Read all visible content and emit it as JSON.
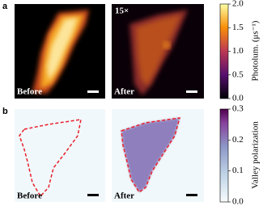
{
  "panels": [
    {
      "label": "a",
      "images": [
        {
          "label": "Before"
        },
        {
          "label": "After",
          "annotation": "15×"
        }
      ],
      "colorbar": {
        "label": "Photolum. (μs⁻¹)",
        "lim": [
          0,
          2
        ],
        "ticks": [
          {
            "value": 0,
            "label": "0.0"
          },
          {
            "value": 0.5,
            "label": "0.5"
          },
          {
            "value": 1,
            "label": "1.0"
          },
          {
            "value": 1.5,
            "label": "1.5"
          },
          {
            "value": 2,
            "label": "2.0"
          }
        ]
      }
    },
    {
      "label": "b",
      "images": [
        {
          "label": "Before"
        },
        {
          "label": "After"
        }
      ],
      "colorbar": {
        "label": "Valley polarization",
        "lim": [
          0,
          0.3
        ],
        "ticks": [
          {
            "value": 0,
            "label": "0.0"
          },
          {
            "value": 0.1,
            "label": "0.1"
          },
          {
            "value": 0.2,
            "label": "0.2"
          },
          {
            "value": 0.3,
            "label": "0.3"
          }
        ]
      }
    }
  ]
}
